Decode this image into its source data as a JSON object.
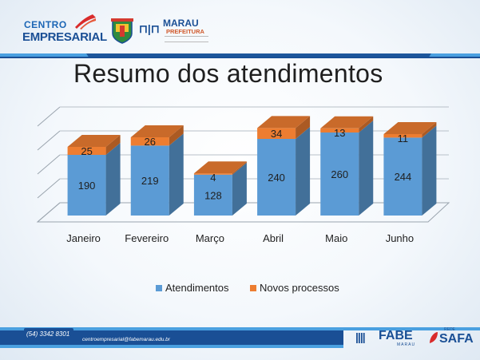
{
  "header": {
    "logo_line1": "CENTRO",
    "logo_line2": "EMPRESARIAL",
    "marau_mark": "⊓|⊓",
    "marau_name": "MARAU",
    "marau_sub": "PREFEITURA"
  },
  "title": "Resumo dos atendimentos",
  "footer": {
    "phone": "(54) 3342 8301",
    "site": "centroempresarial@fabemarau.edu.br",
    "fabe_bars": "||||",
    "fabe": "FABE",
    "fabe_sub": "MARAU",
    "safa_rede": "REDE",
    "safa": "SAFA"
  },
  "colors": {
    "atendimentos": "#5b9bd5",
    "novos_processos": "#ed7d31",
    "brand_blue": "#1a4f95",
    "accent_orange": "#d0582a"
  },
  "chart_data": {
    "type": "bar",
    "stacked": true,
    "three_d": true,
    "categories": [
      "Janeiro",
      "Fevereiro",
      "Março",
      "Abril",
      "Maio",
      "Junho"
    ],
    "series": [
      {
        "name": "Atendimentos",
        "values": [
          190,
          219,
          128,
          240,
          260,
          244
        ]
      },
      {
        "name": "Novos processos",
        "values": [
          25,
          26,
          4,
          34,
          13,
          11
        ]
      }
    ],
    "ylim": [
      0,
      300
    ],
    "grid": true,
    "legend": "bottom"
  }
}
